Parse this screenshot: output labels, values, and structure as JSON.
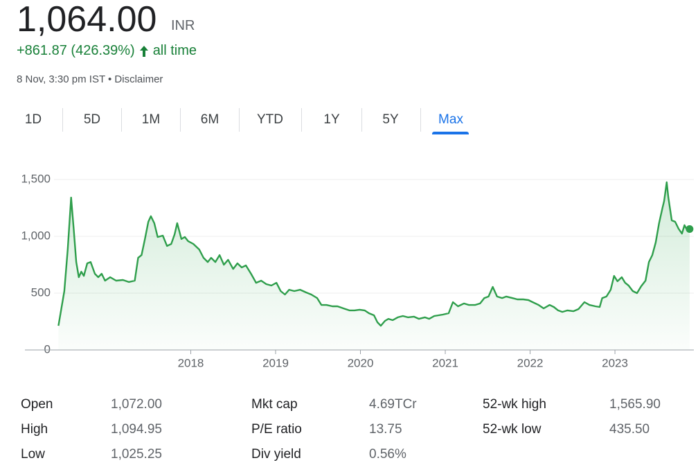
{
  "header": {
    "price": "1,064.00",
    "currency": "INR",
    "change": "+861.87 (426.39%)",
    "period": "all time",
    "timestamp": "8 Nov, 3:30 pm IST • Disclaimer"
  },
  "tabs": {
    "items": [
      "1D",
      "5D",
      "1M",
      "6M",
      "YTD",
      "1Y",
      "5Y",
      "Max"
    ],
    "active": 7
  },
  "chart_data": {
    "type": "line",
    "x": [
      2016.44,
      2016.51,
      2016.55,
      2016.59,
      2016.62,
      2016.65,
      2016.68,
      2016.71,
      2016.74,
      2016.78,
      2016.82,
      2016.87,
      2016.91,
      2016.95,
      2016.99,
      2017.05,
      2017.12,
      2017.2,
      2017.27,
      2017.34,
      2017.38,
      2017.42,
      2017.46,
      2017.5,
      2017.53,
      2017.57,
      2017.61,
      2017.67,
      2017.72,
      2017.77,
      2017.81,
      2017.84,
      2017.89,
      2017.93,
      2017.97,
      2018.03,
      2018.1,
      2018.15,
      2018.2,
      2018.24,
      2018.29,
      2018.34,
      2018.39,
      2018.44,
      2018.5,
      2018.55,
      2018.6,
      2018.65,
      2018.71,
      2018.77,
      2018.83,
      2018.89,
      2018.95,
      2019.01,
      2019.06,
      2019.11,
      2019.16,
      2019.22,
      2019.29,
      2019.36,
      2019.42,
      2019.49,
      2019.54,
      2019.6,
      2019.67,
      2019.73,
      2019.8,
      2019.87,
      2019.93,
      2019.99,
      2020.05,
      2020.1,
      2020.16,
      2020.2,
      2020.24,
      2020.29,
      2020.33,
      2020.38,
      2020.44,
      2020.5,
      2020.56,
      2020.63,
      2020.69,
      2020.76,
      2020.81,
      2020.87,
      2020.92,
      2020.97,
      2021.04,
      2021.09,
      2021.15,
      2021.22,
      2021.28,
      2021.35,
      2021.41,
      2021.46,
      2021.51,
      2021.56,
      2021.61,
      2021.67,
      2021.72,
      2021.79,
      2021.85,
      2021.92,
      2021.98,
      2022.03,
      2022.1,
      2022.16,
      2022.23,
      2022.28,
      2022.33,
      2022.38,
      2022.44,
      2022.51,
      2022.57,
      2022.64,
      2022.7,
      2022.77,
      2022.82,
      2022.85,
      2022.9,
      2022.95,
      2022.99,
      2023.03,
      2023.08,
      2023.12,
      2023.16,
      2023.21,
      2023.26,
      2023.31,
      2023.36,
      2023.4,
      2023.44,
      2023.48,
      2023.52,
      2023.56,
      2023.58,
      2023.61,
      2023.63,
      2023.67,
      2023.71,
      2023.75,
      2023.79,
      2023.82,
      2023.85,
      2023.88
    ],
    "series": [
      {
        "color": "#2e9e4b",
        "values": [
          213,
          518,
          884,
          1341,
          1067,
          774,
          640,
          689,
          652,
          762,
          774,
          671,
          640,
          671,
          610,
          640,
          610,
          616,
          598,
          610,
          811,
          835,
          976,
          1128,
          1177,
          1116,
          994,
          1006,
          915,
          933,
          1018,
          1116,
          976,
          994,
          957,
          933,
          884,
          811,
          774,
          811,
          774,
          835,
          750,
          793,
          713,
          762,
          726,
          744,
          671,
          591,
          610,
          579,
          567,
          591,
          518,
          488,
          530,
          518,
          530,
          506,
          488,
          457,
          396,
          396,
          384,
          384,
          366,
          348,
          348,
          354,
          348,
          323,
          305,
          244,
          213,
          256,
          274,
          262,
          287,
          299,
          287,
          293,
          274,
          287,
          274,
          299,
          305,
          311,
          323,
          421,
          384,
          409,
          396,
          396,
          409,
          457,
          470,
          555,
          470,
          457,
          470,
          457,
          445,
          445,
          439,
          421,
          396,
          366,
          396,
          378,
          348,
          335,
          348,
          341,
          360,
          421,
          396,
          384,
          378,
          457,
          470,
          530,
          652,
          604,
          640,
          591,
          567,
          518,
          500,
          561,
          610,
          774,
          835,
          945,
          1116,
          1250,
          1311,
          1476,
          1341,
          1140,
          1128,
          1067,
          1024,
          1098,
          1055,
          1064
        ]
      }
    ],
    "xlim": [
      2015.98,
      2023.93
    ],
    "xticks": [
      2018,
      2019,
      2020,
      2021,
      2022,
      2023
    ],
    "ylim": [
      0,
      1500
    ],
    "yticks": [
      0,
      500,
      {
        "value": 1000,
        "label": "1,000"
      },
      {
        "value": 1500,
        "label": "1,500"
      }
    ],
    "grid": true
  },
  "stats": {
    "columns": [
      [
        {
          "label": "Open",
          "value": "1,072.00"
        },
        {
          "label": "High",
          "value": "1,094.95"
        },
        {
          "label": "Low",
          "value": "1,025.25"
        }
      ],
      [
        {
          "label": "Mkt cap",
          "value": "4.69TCr"
        },
        {
          "label": "P/E ratio",
          "value": "13.75"
        },
        {
          "label": "Div yield",
          "value": "0.56%"
        }
      ],
      [
        {
          "label": "52-wk high",
          "value": "1,565.90"
        },
        {
          "label": "52-wk low",
          "value": "435.50"
        }
      ]
    ]
  }
}
